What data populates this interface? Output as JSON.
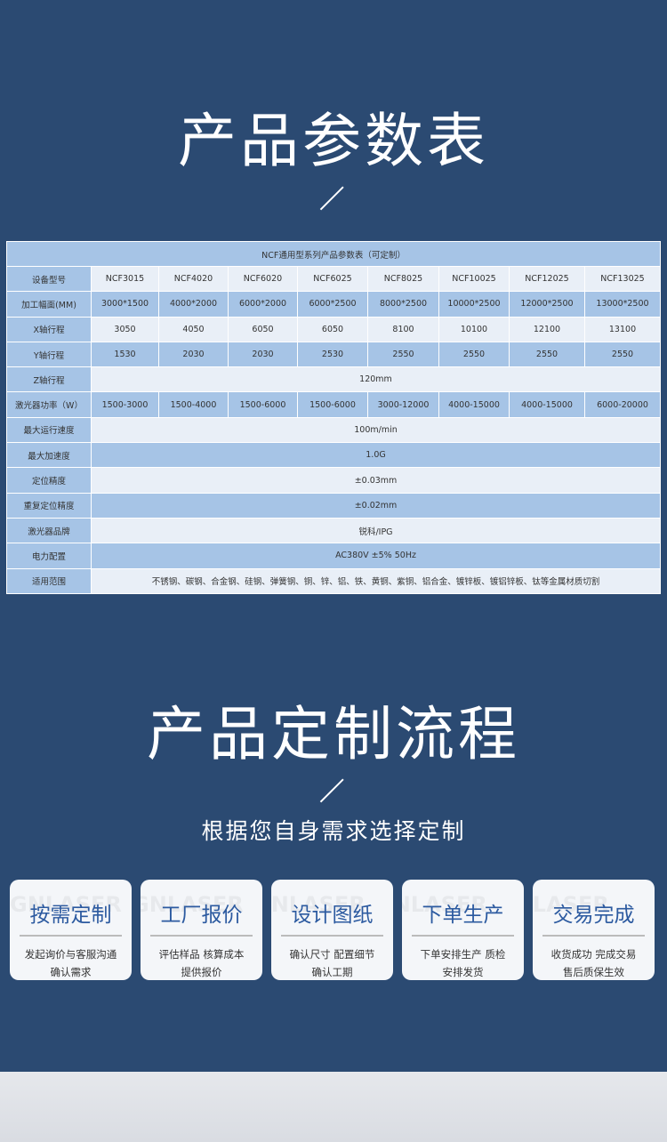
{
  "section1": {
    "title": "产品参数表"
  },
  "table": {
    "caption": "NCF通用型系列产品参数表（可定制）",
    "rows": [
      {
        "label": "设备型号",
        "cells": [
          "NCF3015",
          "NCF4020",
          "NCF6020",
          "NCF6025",
          "NCF8025",
          "NCF10025",
          "NCF12025",
          "NCF13025"
        ]
      },
      {
        "label": "加工幅面(MM)",
        "cells": [
          "3000*1500",
          "4000*2000",
          "6000*2000",
          "6000*2500",
          "8000*2500",
          "10000*2500",
          "12000*2500",
          "13000*2500"
        ]
      },
      {
        "label": "X轴行程",
        "cells": [
          "3050",
          "4050",
          "6050",
          "6050",
          "8100",
          "10100",
          "12100",
          "13100"
        ]
      },
      {
        "label": "Y轴行程",
        "cells": [
          "1530",
          "2030",
          "2030",
          "2530",
          "2550",
          "2550",
          "2550",
          "2550"
        ]
      },
      {
        "label": "Z轴行程",
        "value": "120mm"
      },
      {
        "label": "激光器功率（W）",
        "cells": [
          "1500-3000",
          "1500-4000",
          "1500-6000",
          "1500-6000",
          "3000-12000",
          "4000-15000",
          "4000-15000",
          "6000-20000"
        ]
      },
      {
        "label": "最大运行速度",
        "value": "100m/min"
      },
      {
        "label": "最大加速度",
        "value": "1.0G"
      },
      {
        "label": "定位精度",
        "value": "±0.03mm"
      },
      {
        "label": "重复定位精度",
        "value": "±0.02mm"
      },
      {
        "label": "激光器品牌",
        "value": "锐科/IPG"
      },
      {
        "label": "电力配置",
        "value": "AC380V ±5% 50Hz"
      },
      {
        "label": "适用范围",
        "value": "不锈钢、碳钢、合金钢、硅钢、弹簧钢、铜、锌、铝、铁、黄铜、紫铜、铝合金、镀锌板、镀铝锌板、钛等金属材质切割"
      }
    ]
  },
  "section2": {
    "title": "产品定制流程",
    "subtitle": "根据您自身需求选择定制"
  },
  "watermark": "GNLASER",
  "steps": [
    {
      "title": "按需定制",
      "line1": "发起询价与客服沟通",
      "line2": "确认需求"
    },
    {
      "title": "工厂报价",
      "line1": "评估样品 核算成本",
      "line2": "提供报价"
    },
    {
      "title": "设计图纸",
      "line1": "确认尺寸 配置细节",
      "line2": "确认工期"
    },
    {
      "title": "下单生产",
      "line1": "下单安排生产 质检",
      "line2": "安排发货"
    },
    {
      "title": "交易完成",
      "line1": "收货成功 完成交易",
      "line2": "售后质保生效"
    }
  ]
}
